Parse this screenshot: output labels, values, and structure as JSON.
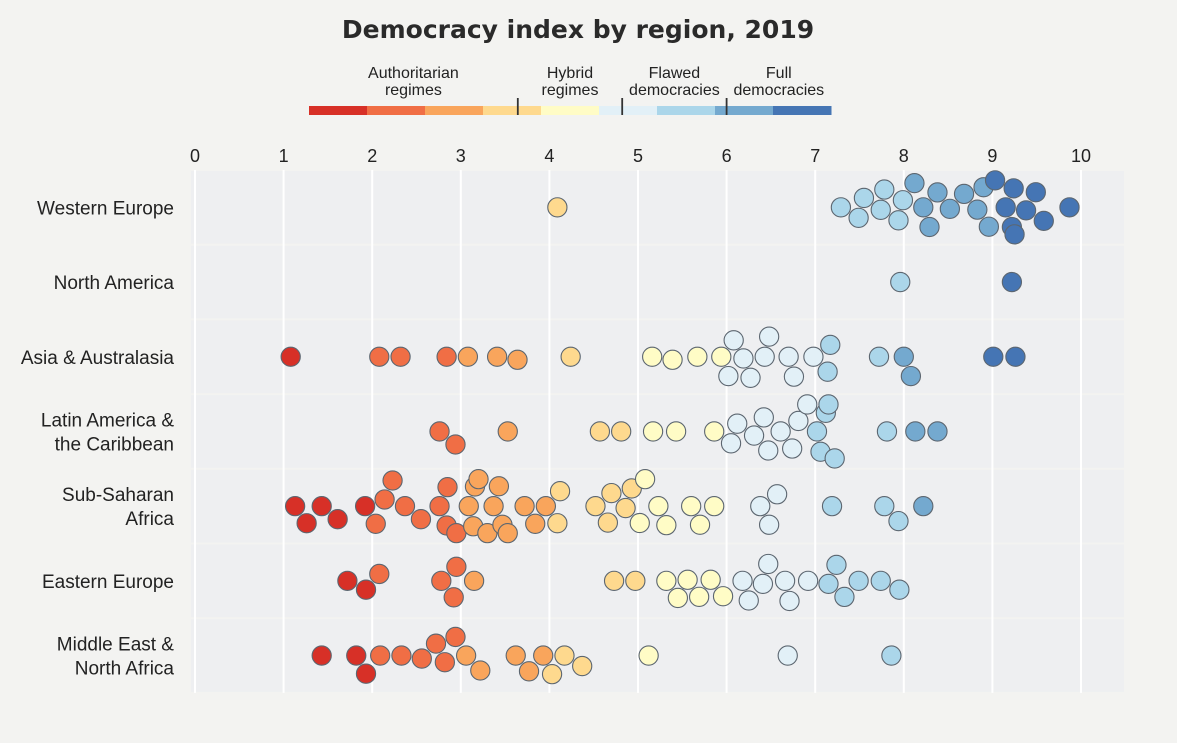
{
  "chart_data": {
    "type": "scatter",
    "subtype": "beeswarm",
    "title": "Democracy index by region, 2019",
    "xlabel": "",
    "ylabel": "",
    "xlim": [
      0,
      10
    ],
    "xticks": [
      0,
      1,
      2,
      3,
      4,
      5,
      6,
      7,
      8,
      9,
      10
    ],
    "grid": true,
    "legend": {
      "position": "top-center",
      "categories": [
        {
          "name": "Authoritarian regimes",
          "lines": [
            "Authoritarian",
            "regimes"
          ],
          "range": [
            0,
            4
          ],
          "colors": [
            "#d73027",
            "#f06e45",
            "#f9a55c"
          ]
        },
        {
          "name": "Hybrid regimes",
          "lines": [
            "Hybrid",
            "regimes"
          ],
          "range": [
            4,
            6
          ],
          "colors": [
            "#fed98e",
            "#fffcc6"
          ]
        },
        {
          "name": "Flawed democracies",
          "lines": [
            "Flawed",
            "democracies"
          ],
          "range": [
            6,
            8
          ],
          "colors": [
            "#e2f0f7",
            "#abd6ea"
          ]
        },
        {
          "name": "Full democracies",
          "lines": [
            "Full",
            "democracies"
          ],
          "range": [
            8,
            10
          ],
          "colors": [
            "#74a9cf",
            "#4575b4"
          ]
        }
      ]
    },
    "color_scale": [
      {
        "min": 0,
        "max": 2,
        "color": "#d73027"
      },
      {
        "min": 2,
        "max": 3,
        "color": "#f06e45"
      },
      {
        "min": 3,
        "max": 4,
        "color": "#f9a55c"
      },
      {
        "min": 4,
        "max": 5,
        "color": "#fed98e"
      },
      {
        "min": 5,
        "max": 6,
        "color": "#fffcc6"
      },
      {
        "min": 6,
        "max": 7,
        "color": "#e2f0f7"
      },
      {
        "min": 7,
        "max": 8,
        "color": "#abd6ea"
      },
      {
        "min": 8,
        "max": 9,
        "color": "#74a9cf"
      },
      {
        "min": 9,
        "max": 10.01,
        "color": "#4575b4"
      }
    ],
    "series": [
      {
        "name": "Western Europe",
        "label_lines": [
          "Western Europe"
        ],
        "values": [
          4.09,
          7.29,
          7.49,
          7.55,
          7.74,
          7.78,
          7.94,
          7.99,
          8.12,
          8.22,
          8.29,
          8.38,
          8.52,
          8.68,
          8.83,
          8.9,
          8.96,
          9.03,
          9.15,
          9.22,
          9.24,
          9.25,
          9.38,
          9.49,
          9.58,
          9.87
        ]
      },
      {
        "name": "North America",
        "label_lines": [
          "North America"
        ],
        "values": [
          7.96,
          9.22
        ]
      },
      {
        "name": "Asia & Australasia",
        "label_lines": [
          "Asia & Australasia"
        ],
        "values": [
          1.08,
          2.08,
          2.32,
          2.84,
          3.08,
          3.41,
          3.64,
          4.24,
          5.16,
          5.39,
          5.67,
          5.94,
          6.02,
          6.08,
          6.19,
          6.27,
          6.43,
          6.48,
          6.7,
          6.76,
          6.98,
          7.14,
          7.17,
          7.72,
          8.0,
          8.08,
          9.01,
          9.26
        ]
      },
      {
        "name": "Latin America & the Caribbean",
        "label_lines": [
          "Latin America &",
          "the Caribbean"
        ],
        "values": [
          2.76,
          2.94,
          3.53,
          4.57,
          4.81,
          5.17,
          5.43,
          5.86,
          6.05,
          6.12,
          6.31,
          6.42,
          6.47,
          6.61,
          6.74,
          6.81,
          6.91,
          7.02,
          7.06,
          7.12,
          7.15,
          7.22,
          7.81,
          8.13,
          8.38
        ]
      },
      {
        "name": "Sub-Saharan Africa",
        "label_lines": [
          "Sub-Saharan",
          "Africa"
        ],
        "values": [
          1.13,
          1.26,
          1.43,
          1.61,
          1.92,
          2.04,
          2.14,
          2.23,
          2.37,
          2.55,
          2.76,
          2.84,
          2.85,
          2.95,
          3.09,
          3.14,
          3.16,
          3.2,
          3.3,
          3.37,
          3.43,
          3.47,
          3.53,
          3.72,
          3.84,
          3.96,
          4.09,
          4.12,
          4.52,
          4.66,
          4.7,
          4.86,
          4.93,
          5.02,
          5.08,
          5.23,
          5.32,
          5.6,
          5.7,
          5.86,
          6.38,
          6.48,
          6.57,
          7.19,
          7.78,
          7.94,
          8.22
        ]
      },
      {
        "name": "Eastern Europe",
        "label_lines": [
          "Eastern Europe"
        ],
        "values": [
          1.72,
          1.93,
          2.08,
          2.78,
          2.92,
          2.95,
          3.15,
          4.73,
          4.97,
          5.32,
          5.45,
          5.56,
          5.69,
          5.82,
          5.96,
          6.18,
          6.25,
          6.41,
          6.47,
          6.66,
          6.71,
          6.92,
          7.15,
          7.24,
          7.33,
          7.49,
          7.74,
          7.95
        ]
      },
      {
        "name": "Middle East & North Africa",
        "label_lines": [
          "Middle East &",
          "North Africa"
        ],
        "values": [
          1.43,
          1.82,
          1.93,
          2.09,
          2.33,
          2.56,
          2.72,
          2.82,
          2.94,
          3.06,
          3.22,
          3.62,
          3.77,
          3.93,
          4.03,
          4.17,
          4.37,
          5.12,
          6.69,
          7.86
        ]
      }
    ]
  }
}
